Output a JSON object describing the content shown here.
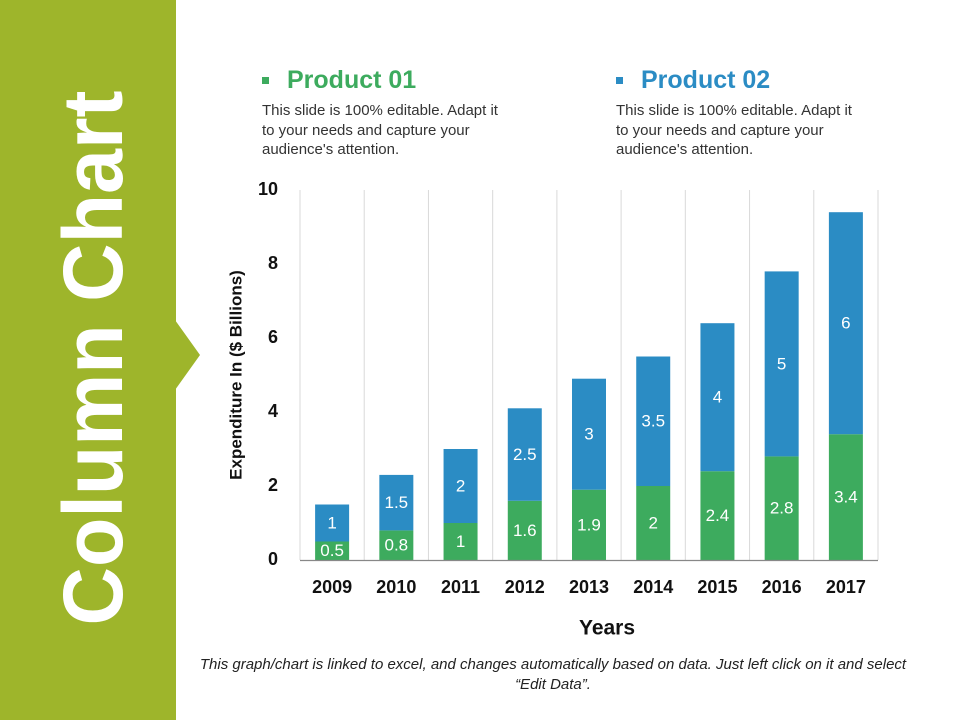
{
  "slide_title": "Column Chart",
  "note": "This graph/chart is linked to excel, and changes automatically based on data. Just left click on it and select “Edit Data”.",
  "chart_data": {
    "type": "stacked-bar",
    "x_label": "Years",
    "y_label": "Expenditure In ($ Billions)",
    "categories": [
      "2009",
      "2010",
      "2011",
      "2012",
      "2013",
      "2014",
      "2015",
      "2016",
      "2017"
    ],
    "series": [
      {
        "name": "Product 01",
        "color": "#3dab5e",
        "description": "This slide is 100% editable. Adapt it to your needs and capture your audience's attention.",
        "values": [
          0.5,
          0.8,
          1,
          1.6,
          1.9,
          2,
          2.4,
          2.8,
          3.4
        ]
      },
      {
        "name": "Product 02",
        "color": "#2b8cc4",
        "description": "This slide is 100% editable. Adapt it to your needs and capture your audience's attention.",
        "values": [
          1,
          1.5,
          2,
          2.5,
          3,
          3.5,
          4,
          5,
          6
        ]
      }
    ],
    "ylim": [
      0,
      10
    ],
    "yticks": [
      0,
      2,
      4,
      6,
      8,
      10
    ],
    "data_labels": true
  }
}
